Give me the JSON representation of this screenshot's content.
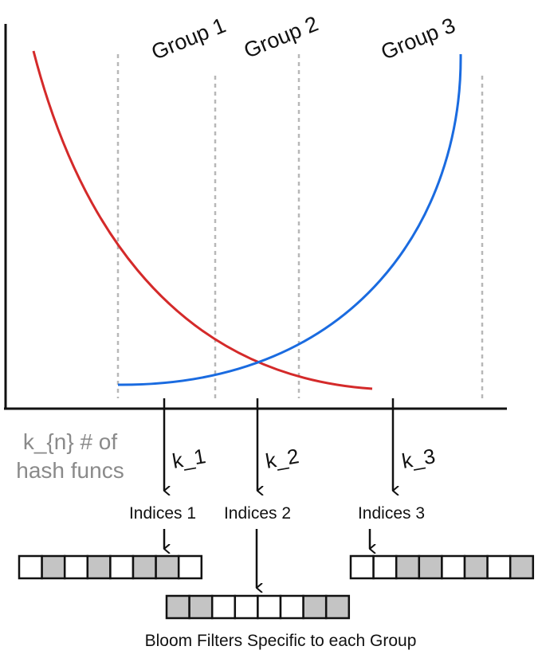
{
  "groups": [
    {
      "label": "Group 1"
    },
    {
      "label": "Group 2"
    },
    {
      "label": "Group 3"
    }
  ],
  "hash_note": {
    "line1": "k_{n} # of",
    "line2": "hash funcs"
  },
  "hash_arrows": [
    {
      "label": "k_1"
    },
    {
      "label": "k_2"
    },
    {
      "label": "k_3"
    }
  ],
  "indices": [
    {
      "label": "Indices 1"
    },
    {
      "label": "Indices 2"
    },
    {
      "label": "Indices 3"
    }
  ],
  "bloom_filters": [
    {
      "name": "filter-group-1",
      "cells": [
        0,
        1,
        0,
        1,
        0,
        1,
        1,
        0
      ]
    },
    {
      "name": "filter-group-2",
      "cells": [
        1,
        1,
        0,
        0,
        0,
        0,
        1,
        1
      ]
    },
    {
      "name": "filter-group-3",
      "cells": [
        0,
        0,
        1,
        1,
        0,
        1,
        0,
        1
      ]
    }
  ],
  "caption": "Bloom Filters Specific to each Group",
  "colors": {
    "decreasing_curve": "#d42a2a",
    "increasing_curve": "#1a6be0",
    "axis": "#111111",
    "divider": "#b8b8b8",
    "filled_cell": "#c4c4c4",
    "empty_cell": "#ffffff",
    "note_text": "#8a8a8a"
  }
}
